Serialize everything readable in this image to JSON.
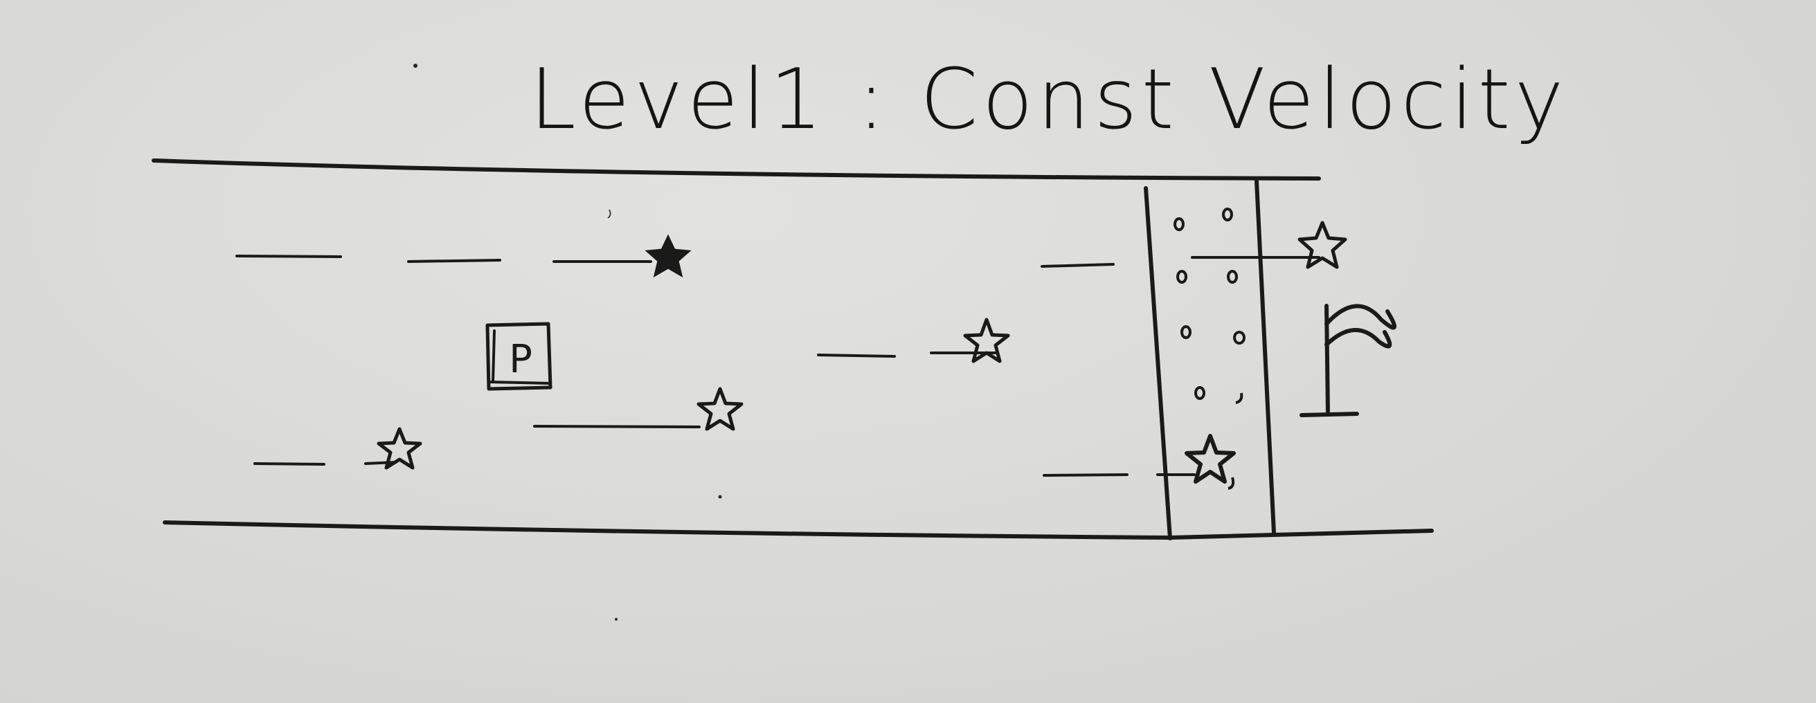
{
  "title": "Level1 : Const Velocity",
  "player_label": "P",
  "icons": {
    "star": "star-icon",
    "player": "player-box-icon",
    "flag": "flag-icon",
    "goal": "goal-zone"
  },
  "ink_color": "#1a1a1a",
  "paper_color": "#dadada"
}
